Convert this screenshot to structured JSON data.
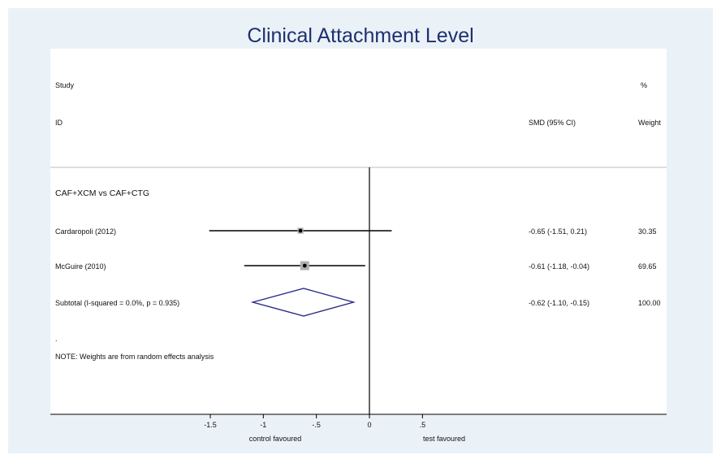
{
  "chart_data": {
    "type": "forest",
    "title": "Clinical Attachment Level",
    "header": {
      "study_line1": "Study",
      "study_line2": "ID",
      "effect_label": "SMD (95% CI)",
      "weight_line1": "%",
      "weight_line2": "Weight"
    },
    "group_label": "CAF+XCM vs CAF+CTG",
    "studies": [
      {
        "name": "Cardaropoli (2012)",
        "smd": -0.65,
        "ci_low": -1.51,
        "ci_high": 0.21,
        "effect_text": "-0.65 (-1.51, 0.21)",
        "weight": 30.35,
        "weight_text": "30.35"
      },
      {
        "name": "McGuire (2010)",
        "smd": -0.61,
        "ci_low": -1.18,
        "ci_high": -0.04,
        "effect_text": "-0.61 (-1.18, -0.04)",
        "weight": 69.65,
        "weight_text": "69.65"
      }
    ],
    "subtotal": {
      "label": "Subtotal  (I-squared = 0.0%, p = 0.935)",
      "smd": -0.62,
      "ci_low": -1.1,
      "ci_high": -0.15,
      "effect_text": "-0.62 (-1.10, -0.15)",
      "weight_text": "100.00"
    },
    "dot_text": ".",
    "note": "NOTE: Weights are from random effects analysis",
    "x_ticks": [
      {
        "value": -1.5,
        "label": "-1.5"
      },
      {
        "value": -1,
        "label": "-1"
      },
      {
        "value": -0.5,
        "label": "-.5"
      },
      {
        "value": 0,
        "label": "0"
      },
      {
        "value": 0.5,
        "label": ".5"
      }
    ],
    "x_left_label": "control favoured",
    "x_right_label": "test favoured",
    "xlim": [
      -1.51,
      0.51
    ],
    "colors": {
      "background": "#eaf2f8",
      "plot_region": "#ffffff",
      "title": "#1f2f6e",
      "diamond": "#2a2a8a",
      "weight_box": "#b0b0b0",
      "lines": "#000000"
    }
  }
}
